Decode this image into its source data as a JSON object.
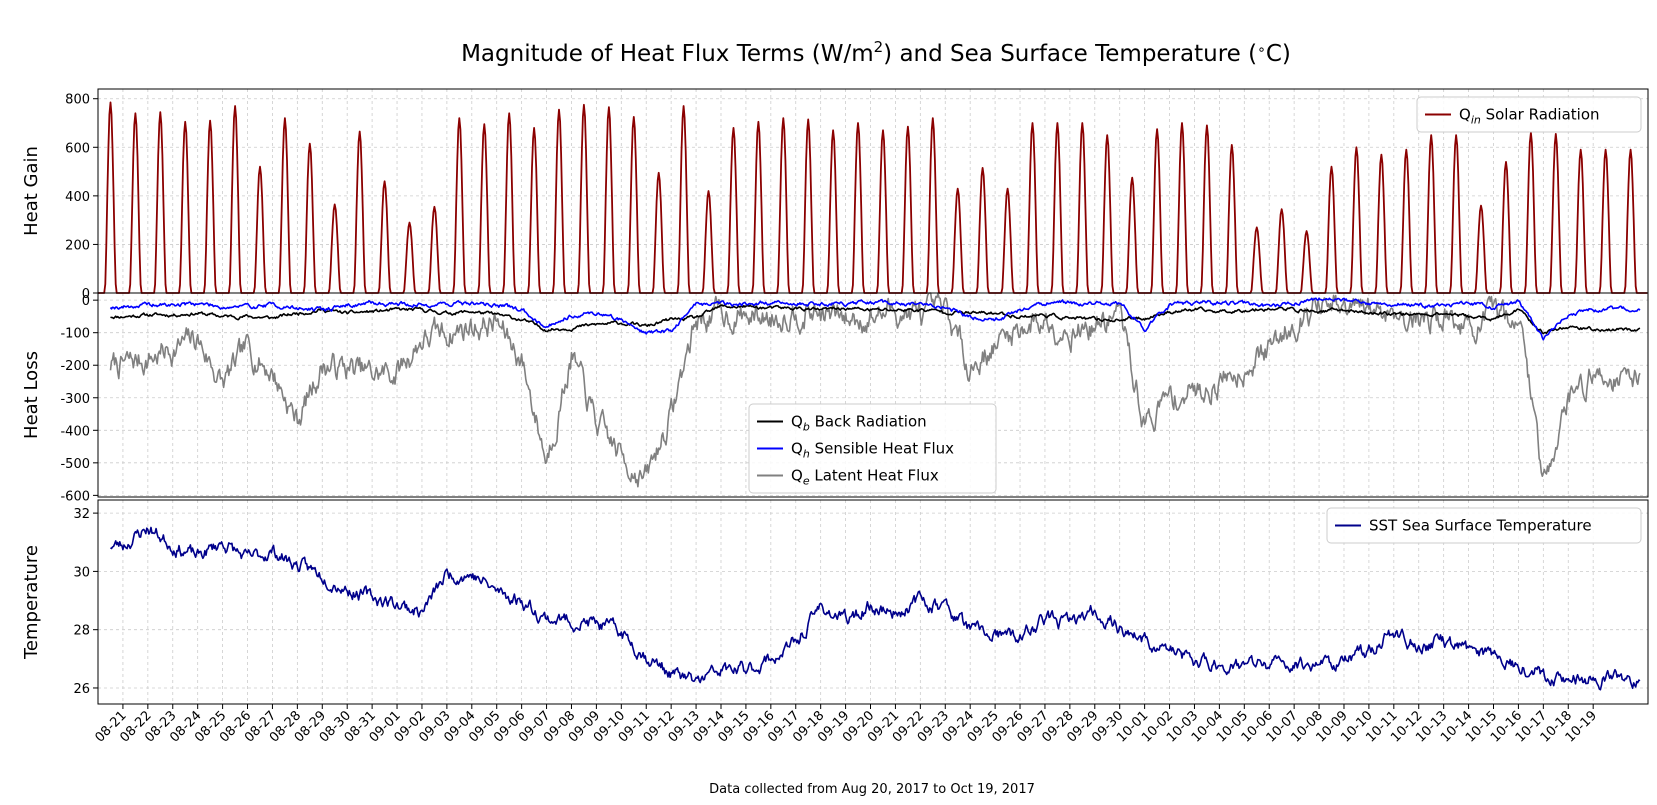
{
  "chart_data": {
    "type": "line",
    "title": "Magnitude of Heat Flux Terms (W/m²) and Sea Surface Temperature (°C)",
    "footnote": "Data collected from Aug 20, 2017 to Oct 19, 2017",
    "x_tick_labels": [
      "08-21",
      "08-22",
      "08-23",
      "08-24",
      "08-25",
      "08-26",
      "08-27",
      "08-28",
      "08-29",
      "08-30",
      "08-31",
      "09-01",
      "09-02",
      "09-03",
      "09-04",
      "09-05",
      "09-06",
      "09-07",
      "09-08",
      "09-09",
      "09-10",
      "09-11",
      "09-12",
      "09-13",
      "09-14",
      "09-15",
      "09-16",
      "09-17",
      "09-18",
      "09-19",
      "09-20",
      "09-21",
      "09-22",
      "09-23",
      "09-24",
      "09-25",
      "09-26",
      "09-27",
      "09-28",
      "09-29",
      "09-30",
      "10-01",
      "10-02",
      "10-03",
      "10-04",
      "10-05",
      "10-06",
      "10-07",
      "10-08",
      "10-09",
      "10-10",
      "10-11",
      "10-12",
      "10-13",
      "10-14",
      "10-15",
      "10-16",
      "10-17",
      "10-18",
      "10-19"
    ],
    "panels": [
      {
        "ylabel": "Heat Gain",
        "ylim": [
          0,
          840
        ],
        "yticks": [
          0,
          200,
          400,
          600,
          800
        ],
        "legend_position": "top-right",
        "series": [
          {
            "name": "Solar Radiation",
            "symbol": "Q",
            "subscript": "in",
            "color": "#8b0000",
            "description": "diurnal peak W/m2 per day",
            "daily_peaks": [
              785,
              740,
              745,
              705,
              710,
              770,
              520,
              720,
              615,
              365,
              665,
              460,
              290,
              355,
              720,
              695,
              740,
              680,
              755,
              775,
              765,
              725,
              495,
              770,
              420,
              680,
              705,
              720,
              715,
              670,
              700,
              670,
              685,
              720,
              430,
              515,
              430,
              700,
              700,
              700,
              650,
              475,
              675,
              700,
              690,
              610,
              270,
              345,
              255,
              520,
              600,
              570,
              590,
              650,
              650,
              360,
              540,
              660,
              655,
              590
            ]
          }
        ]
      },
      {
        "ylabel": "Heat Loss",
        "ylim": [
          -605,
          22
        ],
        "yticks": [
          0,
          -100,
          -200,
          -300,
          -400,
          -500,
          -600
        ],
        "legend_position": "lower-center",
        "series": [
          {
            "name": "Back Radiation",
            "symbol": "Q",
            "subscript": "b",
            "color": "#000000",
            "daily_values": [
              -50,
              -45,
              -45,
              -40,
              -50,
              -50,
              -55,
              -40,
              -30,
              -40,
              -35,
              -30,
              -30,
              -40,
              -35,
              -45,
              -60,
              -90,
              -85,
              -75,
              -70,
              -80,
              -60,
              -55,
              -20,
              -20,
              -25,
              -25,
              -30,
              -25,
              -30,
              -30,
              -30,
              -35,
              -40,
              -40,
              -50,
              -45,
              -55,
              -60,
              -60,
              -55,
              -35,
              -30,
              -35,
              -30,
              -25,
              -30,
              -35,
              -30,
              -40,
              -40,
              -45,
              -40,
              -50,
              -60,
              -30,
              -100,
              -80,
              -90
            ]
          },
          {
            "name": "Sensible Heat Flux",
            "symbol": "Q",
            "subscript": "h",
            "color": "#0000ff",
            "daily_values": [
              -20,
              -15,
              -15,
              -10,
              -20,
              -20,
              -15,
              -25,
              -30,
              -15,
              -10,
              -10,
              -15,
              -10,
              -10,
              -15,
              -30,
              -80,
              -45,
              -40,
              -60,
              -100,
              -95,
              -10,
              -10,
              -10,
              -10,
              -10,
              -10,
              -10,
              -10,
              -10,
              -15,
              -20,
              -50,
              -60,
              -30,
              -10,
              -10,
              -10,
              -10,
              -90,
              -15,
              -10,
              -10,
              -10,
              -20,
              -10,
              5,
              0,
              -10,
              -10,
              -15,
              -20,
              -10,
              -20,
              -5,
              -120,
              -50,
              -30
            ]
          },
          {
            "name": "Latent Heat Flux",
            "symbol": "Q",
            "subscript": "e",
            "color": "#808080",
            "daily_values": [
              -200,
              -180,
              -150,
              -120,
              -260,
              -150,
              -220,
              -370,
              -200,
              -210,
              -230,
              -220,
              -120,
              -100,
              -80,
              -70,
              -180,
              -490,
              -170,
              -380,
              -480,
              -550,
              -350,
              -60,
              -40,
              -50,
              -50,
              -30,
              -40,
              -60,
              -50,
              -30,
              -50,
              -40,
              -200,
              -140,
              -80,
              -60,
              -90,
              -80,
              -40,
              -380,
              -300,
              -280,
              -250,
              -200,
              -150,
              -60,
              -20,
              -40,
              -30,
              -30,
              -60,
              -40,
              -90,
              -60,
              -30,
              -550,
              -300,
              -230
            ]
          }
        ]
      },
      {
        "ylabel": "Temperature",
        "ylim": [
          25.45,
          32.45
        ],
        "yticks": [
          26,
          28,
          30,
          32
        ],
        "legend_position": "top-right",
        "series": [
          {
            "name": "Sea Surface Temperature",
            "symbol": "SST",
            "subscript": "",
            "color": "#00008b",
            "daily_values": [
              30.9,
              31.5,
              30.9,
              30.5,
              31.0,
              30.4,
              30.7,
              30.2,
              29.9,
              29.4,
              29.1,
              28.9,
              28.6,
              29.9,
              29.9,
              29.3,
              29.0,
              28.4,
              28.3,
              28.2,
              27.9,
              27.1,
              26.5,
              26.2,
              26.6,
              26.6,
              27.0,
              27.5,
              28.8,
              28.3,
              28.8,
              28.6,
              29.0,
              28.8,
              28.0,
              27.8,
              27.7,
              28.4,
              28.2,
              28.6,
              28.1,
              27.6,
              27.3,
              26.9,
              26.8,
              26.8,
              26.8,
              26.8,
              26.9,
              26.9,
              27.3,
              27.9,
              27.4,
              27.6,
              27.3,
              27.2,
              26.8,
              26.5,
              26.3,
              26.3
            ]
          }
        ]
      }
    ]
  }
}
